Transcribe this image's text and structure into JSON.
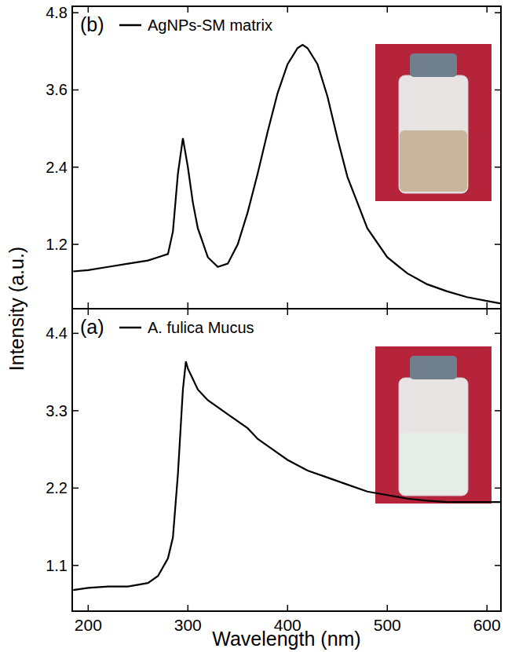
{
  "chart_data": [
    {
      "type": "line",
      "title": "(b)",
      "tick_labels": "y",
      "xlim": [
        184,
        614
      ],
      "xticks": [
        200,
        300,
        400,
        500,
        600
      ],
      "ylim": [
        0.2,
        4.9
      ],
      "yticks": [
        1.2,
        2.4,
        3.6,
        4.8
      ],
      "legend": "upper left",
      "series": [
        {
          "name": "AgNPs-SM matrix",
          "color": "#000000",
          "line_style": "solid",
          "x": [
            185,
            200,
            220,
            240,
            260,
            270,
            280,
            285,
            290,
            295,
            300,
            305,
            310,
            320,
            330,
            340,
            350,
            360,
            370,
            380,
            390,
            400,
            410,
            415,
            420,
            430,
            440,
            450,
            460,
            480,
            500,
            520,
            540,
            560,
            580,
            600,
            614
          ],
          "values": [
            0.78,
            0.8,
            0.85,
            0.9,
            0.95,
            1.0,
            1.05,
            1.4,
            2.3,
            2.85,
            2.4,
            1.85,
            1.45,
            1.0,
            0.85,
            0.9,
            1.2,
            1.7,
            2.3,
            2.95,
            3.55,
            4.0,
            4.25,
            4.3,
            4.25,
            4.0,
            3.5,
            2.85,
            2.25,
            1.45,
            1.0,
            0.75,
            0.58,
            0.47,
            0.38,
            0.32,
            0.28
          ]
        }
      ]
    },
    {
      "type": "line",
      "title": "(a)",
      "tick_labels": true,
      "x_label": "Wavelength (nm)",
      "y_label": "Intensity (a.u.)",
      "xlim": [
        184,
        614
      ],
      "xticks": [
        200,
        300,
        400,
        500,
        600
      ],
      "ylim": [
        0.45,
        4.75
      ],
      "yticks": [
        1.1,
        2.2,
        3.3,
        4.4
      ],
      "legend": "upper left",
      "series": [
        {
          "name": "A. fulica Mucus",
          "color": "#000000",
          "line_style": "solid",
          "x": [
            185,
            200,
            220,
            240,
            260,
            270,
            280,
            285,
            290,
            295,
            298,
            300,
            305,
            310,
            320,
            340,
            360,
            370,
            380,
            400,
            420,
            440,
            460,
            480,
            500,
            520,
            540,
            560,
            580,
            600,
            614
          ],
          "values": [
            0.75,
            0.78,
            0.8,
            0.8,
            0.85,
            0.95,
            1.2,
            1.5,
            2.4,
            3.6,
            4.0,
            3.9,
            3.75,
            3.6,
            3.45,
            3.25,
            3.05,
            2.9,
            2.8,
            2.6,
            2.45,
            2.35,
            2.25,
            2.15,
            2.1,
            2.05,
            2.02,
            2.0,
            2.0,
            2.0,
            2.0
          ]
        }
      ]
    }
  ]
}
